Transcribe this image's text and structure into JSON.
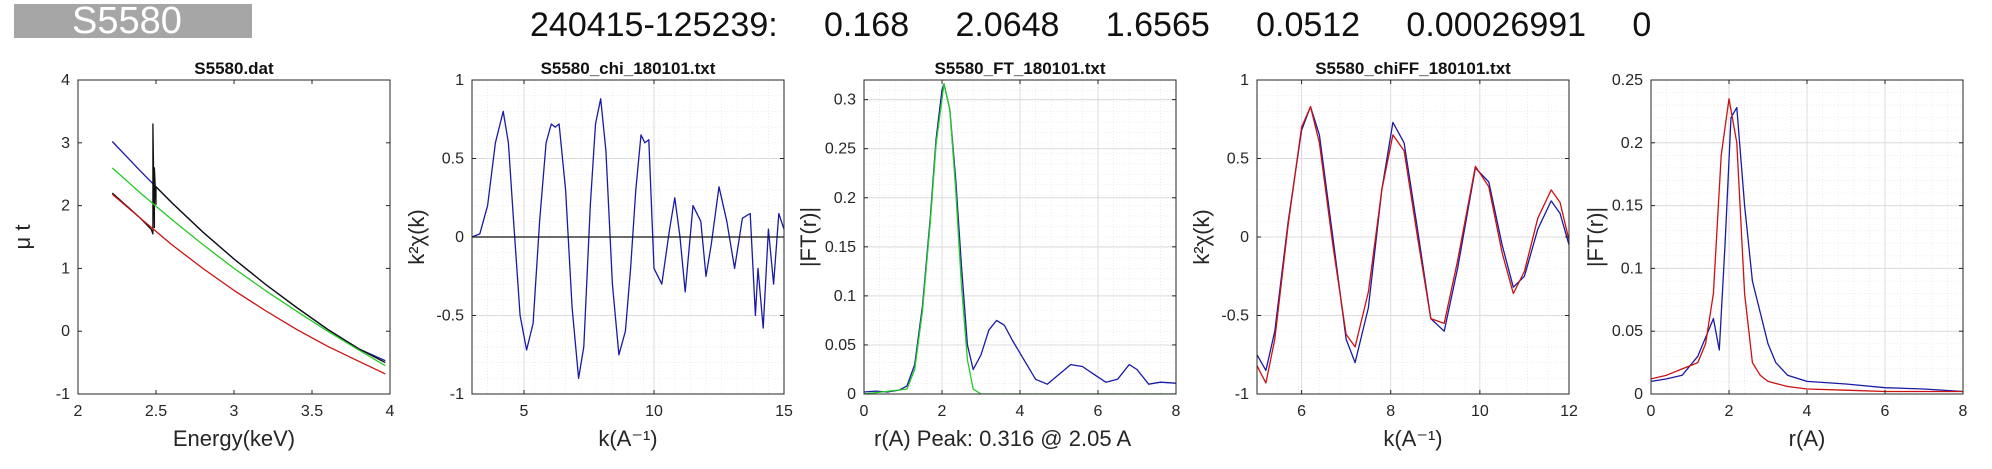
{
  "header": {
    "sample": "S5580",
    "line": "240415-125239:   0.168   2.0648   1.6565   0.0512   0.00026991   0"
  },
  "chart_data": [
    {
      "type": "line",
      "title": "S5580.dat",
      "xlabel": "Energy(keV)",
      "ylabel": "μ t",
      "xlim": [
        2,
        4
      ],
      "ylim": [
        -1,
        4
      ],
      "xticks": [
        "2",
        "2.5",
        "3",
        "3.5",
        "4"
      ],
      "yticks": [
        "-1",
        "0",
        "1",
        "2",
        "3",
        "4"
      ],
      "grid": false,
      "series": [
        {
          "color": "#1a1aa6",
          "x": [
            2.22,
            2.4,
            2.6,
            2.8,
            3.0,
            3.2,
            3.4,
            3.6,
            3.8,
            3.97
          ],
          "y": [
            3.02,
            2.55,
            2.05,
            1.58,
            1.15,
            0.75,
            0.38,
            0.03,
            -0.28,
            -0.47
          ]
        },
        {
          "color": "#111111",
          "x": [
            2.22,
            2.4,
            2.47,
            2.48,
            2.48,
            2.49,
            2.49,
            2.5,
            2.5,
            2.6,
            2.8,
            3.0,
            3.2,
            3.4,
            3.6,
            3.8,
            3.97
          ],
          "y": [
            2.2,
            1.8,
            1.62,
            1.55,
            3.3,
            1.65,
            2.6,
            2.02,
            2.3,
            2.05,
            1.58,
            1.15,
            0.75,
            0.38,
            0.03,
            -0.28,
            -0.5
          ]
        },
        {
          "color": "#22cc22",
          "x": [
            2.22,
            2.4,
            2.6,
            2.8,
            3.0,
            3.2,
            3.4,
            3.6,
            3.8,
            3.97
          ],
          "y": [
            2.6,
            2.2,
            1.78,
            1.38,
            1.0,
            0.65,
            0.32,
            0.0,
            -0.3,
            -0.55
          ]
        },
        {
          "color": "#cc1111",
          "x": [
            2.22,
            2.4,
            2.6,
            2.8,
            3.0,
            3.2,
            3.4,
            3.6,
            3.8,
            3.97
          ],
          "y": [
            2.18,
            1.8,
            1.38,
            1.0,
            0.65,
            0.33,
            0.03,
            -0.24,
            -0.48,
            -0.68
          ]
        }
      ]
    },
    {
      "type": "line",
      "title": "S5580_chi_180101.txt",
      "xlabel": "k(A⁻¹)",
      "ylabel": "k²χ(k)",
      "xlim": [
        3,
        15
      ],
      "ylim": [
        -1,
        1
      ],
      "xticks": [
        "5",
        "10",
        "15"
      ],
      "yticks": [
        "-1",
        "-0.5",
        "0",
        "0.5",
        "1"
      ],
      "grid": true,
      "series": [
        {
          "color": "#1a1aa6",
          "x": [
            3.0,
            3.3,
            3.6,
            3.9,
            4.2,
            4.4,
            4.6,
            4.85,
            5.1,
            5.35,
            5.6,
            5.85,
            6.05,
            6.2,
            6.35,
            6.6,
            6.85,
            7.1,
            7.3,
            7.55,
            7.75,
            7.95,
            8.15,
            8.4,
            8.65,
            8.9,
            9.1,
            9.3,
            9.5,
            9.65,
            9.8,
            10.0,
            10.3,
            10.6,
            10.8,
            11.0,
            11.2,
            11.5,
            11.8,
            12.0,
            12.2,
            12.5,
            12.8,
            13.1,
            13.4,
            13.7,
            13.9,
            14.0,
            14.2,
            14.4,
            14.6,
            14.8,
            15.0
          ],
          "y": [
            0.0,
            0.02,
            0.2,
            0.6,
            0.8,
            0.6,
            0.1,
            -0.5,
            -0.72,
            -0.55,
            0.1,
            0.6,
            0.72,
            0.7,
            0.72,
            0.3,
            -0.45,
            -0.9,
            -0.7,
            0.2,
            0.72,
            0.88,
            0.55,
            -0.3,
            -0.75,
            -0.6,
            -0.2,
            0.3,
            0.65,
            0.6,
            0.62,
            -0.2,
            -0.3,
            0.05,
            0.25,
            0.0,
            -0.35,
            0.2,
            0.1,
            -0.25,
            -0.05,
            0.32,
            0.1,
            -0.2,
            0.12,
            0.15,
            -0.5,
            -0.2,
            -0.58,
            0.05,
            -0.3,
            0.15,
            0.05
          ]
        },
        {
          "color": "#111111",
          "x": [
            3,
            15
          ],
          "y": [
            0,
            0
          ]
        }
      ]
    },
    {
      "type": "line",
      "title": "S5580_FT_180101.txt",
      "xlabel": "r(A)      Peak: 0.316 @ 2.05 A",
      "ylabel": "|FT(r)|",
      "xlim": [
        0,
        8
      ],
      "ylim": [
        0,
        0.32
      ],
      "xticks": [
        "0",
        "2",
        "4",
        "6",
        "8"
      ],
      "yticks": [
        "0",
        "0.05",
        "0.1",
        "0.15",
        "0.2",
        "0.25",
        "0.3"
      ],
      "grid": true,
      "series": [
        {
          "color": "#1a1aa6",
          "x": [
            0.0,
            0.3,
            0.6,
            0.9,
            1.1,
            1.3,
            1.5,
            1.7,
            1.85,
            2.0,
            2.05,
            2.2,
            2.35,
            2.5,
            2.65,
            2.8,
            3.0,
            3.2,
            3.4,
            3.6,
            3.8,
            4.1,
            4.4,
            4.7,
            5.0,
            5.3,
            5.6,
            5.9,
            6.2,
            6.5,
            6.8,
            7.0,
            7.3,
            7.6,
            8.0
          ],
          "y": [
            0.002,
            0.003,
            0.002,
            0.004,
            0.008,
            0.03,
            0.09,
            0.18,
            0.26,
            0.31,
            0.316,
            0.29,
            0.22,
            0.13,
            0.05,
            0.025,
            0.04,
            0.065,
            0.075,
            0.07,
            0.055,
            0.035,
            0.015,
            0.01,
            0.02,
            0.03,
            0.028,
            0.02,
            0.012,
            0.015,
            0.03,
            0.025,
            0.01,
            0.012,
            0.011
          ]
        },
        {
          "color": "#22cc22",
          "x": [
            0.0,
            1.1,
            1.3,
            1.5,
            1.7,
            1.85,
            2.05,
            2.2,
            2.35,
            2.5,
            2.65,
            2.8,
            3.0,
            8.0
          ],
          "y": [
            0.0,
            0.005,
            0.025,
            0.085,
            0.175,
            0.255,
            0.316,
            0.29,
            0.21,
            0.11,
            0.035,
            0.005,
            0.0,
            0.0
          ]
        }
      ]
    },
    {
      "type": "line",
      "title": "S5580_chiFF_180101.txt",
      "xlabel": "k(A⁻¹)",
      "ylabel": "k²χ(k)",
      "xlim": [
        5,
        12
      ],
      "ylim": [
        -1,
        1
      ],
      "xticks": [
        "6",
        "8",
        "10",
        "12"
      ],
      "yticks": [
        "-1",
        "-0.5",
        "0",
        "0.5",
        "1"
      ],
      "grid": true,
      "series": [
        {
          "color": "#1a1aa6",
          "x": [
            5.0,
            5.2,
            5.4,
            5.7,
            6.0,
            6.2,
            6.4,
            6.7,
            7.0,
            7.2,
            7.5,
            7.8,
            8.05,
            8.3,
            8.6,
            8.9,
            9.2,
            9.5,
            9.9,
            10.2,
            10.5,
            10.75,
            11.0,
            11.3,
            11.6,
            11.8,
            12.0
          ],
          "y": [
            -0.75,
            -0.85,
            -0.6,
            0.1,
            0.68,
            0.83,
            0.65,
            0.0,
            -0.65,
            -0.8,
            -0.45,
            0.3,
            0.73,
            0.6,
            0.05,
            -0.52,
            -0.6,
            -0.2,
            0.44,
            0.35,
            -0.05,
            -0.32,
            -0.25,
            0.05,
            0.23,
            0.15,
            -0.05
          ]
        },
        {
          "color": "#cc1111",
          "x": [
            5.0,
            5.2,
            5.4,
            5.7,
            6.0,
            6.2,
            6.4,
            6.7,
            7.0,
            7.2,
            7.5,
            7.8,
            8.05,
            8.3,
            8.6,
            8.9,
            9.2,
            9.5,
            9.9,
            10.2,
            10.5,
            10.75,
            11.0,
            11.3,
            11.6,
            11.8,
            12.0
          ],
          "y": [
            -0.82,
            -0.93,
            -0.65,
            0.08,
            0.7,
            0.83,
            0.6,
            -0.05,
            -0.62,
            -0.7,
            -0.35,
            0.3,
            0.65,
            0.55,
            0.0,
            -0.52,
            -0.55,
            -0.15,
            0.45,
            0.32,
            -0.1,
            -0.36,
            -0.22,
            0.12,
            0.3,
            0.22,
            -0.02
          ]
        }
      ]
    },
    {
      "type": "line",
      "title": "",
      "xlabel": "r(A)",
      "ylabel": "|FT(r)|",
      "xlim": [
        0,
        8
      ],
      "ylim": [
        0,
        0.25
      ],
      "xticks": [
        "0",
        "2",
        "4",
        "6",
        "8"
      ],
      "yticks": [
        "0",
        "0.05",
        "0.1",
        "0.15",
        "0.2",
        "0.25"
      ],
      "grid": true,
      "series": [
        {
          "color": "#1a1aa6",
          "x": [
            0.0,
            0.4,
            0.8,
            1.2,
            1.4,
            1.6,
            1.75,
            1.9,
            2.05,
            2.2,
            2.4,
            2.6,
            2.8,
            3.0,
            3.2,
            3.5,
            4.0,
            5.0,
            6.0,
            7.0,
            8.0
          ],
          "y": [
            0.01,
            0.012,
            0.015,
            0.03,
            0.045,
            0.06,
            0.035,
            0.12,
            0.22,
            0.228,
            0.15,
            0.09,
            0.065,
            0.04,
            0.025,
            0.015,
            0.01,
            0.008,
            0.005,
            0.004,
            0.002
          ]
        },
        {
          "color": "#cc1111",
          "x": [
            0.0,
            0.4,
            0.8,
            1.2,
            1.4,
            1.6,
            1.8,
            2.0,
            2.2,
            2.4,
            2.6,
            2.8,
            3.0,
            3.5,
            4.0,
            5.0,
            6.0,
            7.0,
            8.0
          ],
          "y": [
            0.012,
            0.015,
            0.02,
            0.025,
            0.04,
            0.08,
            0.19,
            0.235,
            0.2,
            0.08,
            0.025,
            0.015,
            0.01,
            0.006,
            0.004,
            0.003,
            0.002,
            0.002,
            0.002
          ]
        }
      ]
    }
  ]
}
